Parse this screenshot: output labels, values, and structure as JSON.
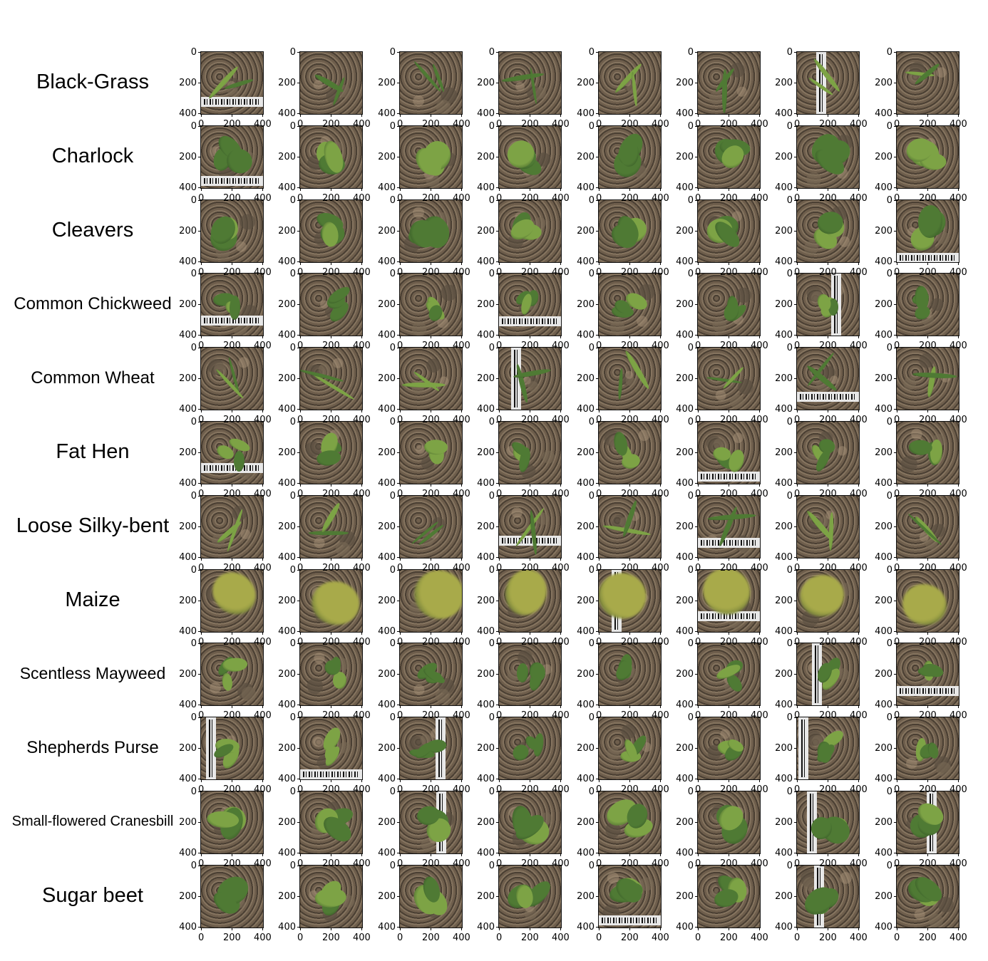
{
  "figure": {
    "rows": [
      {
        "label": "Black-Grass",
        "font_size": 29,
        "kind": "grass"
      },
      {
        "label": "Charlock",
        "font_size": 29,
        "kind": "broad"
      },
      {
        "label": "Cleavers",
        "font_size": 29,
        "kind": "broad"
      },
      {
        "label": "Common Chickweed",
        "font_size": 24,
        "kind": "small"
      },
      {
        "label": "Common Wheat",
        "font_size": 24,
        "kind": "grass"
      },
      {
        "label": "Fat Hen",
        "font_size": 29,
        "kind": "small"
      },
      {
        "label": "Loose Silky-bent",
        "font_size": 29,
        "kind": "grass"
      },
      {
        "label": "Maize",
        "font_size": 29,
        "kind": "maize"
      },
      {
        "label": "Scentless Mayweed",
        "font_size": 23,
        "kind": "small"
      },
      {
        "label": "Shepherds Purse",
        "font_size": 24,
        "kind": "small"
      },
      {
        "label": "Small-flowered Cranesbill",
        "font_size": 20,
        "kind": "broad"
      },
      {
        "label": "Sugar beet",
        "font_size": 29,
        "kind": "broad"
      }
    ],
    "columns": 8,
    "y_ticks": [
      "0",
      "200",
      "400"
    ],
    "x_ticks": [
      "0",
      "200",
      "400"
    ],
    "colors": {
      "soil": "#6e5e4c",
      "soil_dark": "#4a3f33",
      "leaf": "#4f7a34",
      "leaf_light": "#7da345",
      "maize": "#a8aa4a",
      "tag": "#e8e8e8"
    }
  }
}
